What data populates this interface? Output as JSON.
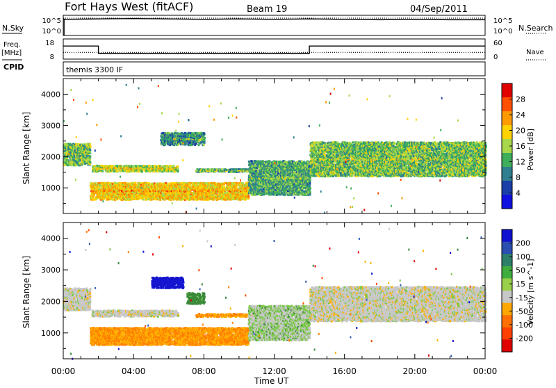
{
  "header": {
    "station": "Fort Hays West (fitACF)",
    "beam": "Beam 19",
    "date": "04/Sep/2011"
  },
  "side_labels": {
    "nsky": "N.Sky",
    "nsearch": "N.Search",
    "freq": "Freq.",
    "freq_unit": "[MHz]",
    "nave": "Nave",
    "cpid": "CPID",
    "cpid_value": "themis 3300 IF"
  },
  "small_ticks": {
    "nsky_top": "10^5",
    "nsky_bottom": "10^0",
    "nsearch_top": "10^5",
    "nsearch_bottom": "10^0",
    "freq_top": "18",
    "freq_bottom": "8",
    "nave_top": "60",
    "nave_bottom": "0"
  },
  "xaxis": {
    "title": "Time UT",
    "ticks": [
      "00:00",
      "04:00",
      "08:00",
      "12:00",
      "16:00",
      "20:00",
      "00:00"
    ]
  },
  "chart_data": [
    {
      "type": "line",
      "panel": "noise",
      "series": [
        {
          "name": "N.Sky",
          "style": "solid",
          "x_hours": [
            0,
            2,
            4,
            6,
            8,
            10,
            12,
            14,
            16,
            18,
            20,
            22,
            24
          ],
          "log10_value": [
            4.0,
            4.1,
            4.2,
            4.1,
            4.0,
            4.1,
            4.0,
            4.1,
            4.0,
            3.9,
            4.0,
            3.9,
            3.9
          ]
        },
        {
          "name": "N.Search",
          "style": "dotted",
          "x_hours": [
            0,
            6,
            12,
            18,
            24
          ],
          "log10_value": [
            4.3,
            4.3,
            4.3,
            4.3,
            4.3
          ]
        }
      ],
      "ylim_log10": [
        0,
        5
      ]
    },
    {
      "type": "line",
      "panel": "frequency",
      "series": [
        {
          "name": "Freq.",
          "style": "solid",
          "x_hours": [
            0,
            2,
            2,
            14,
            14,
            24
          ],
          "values": [
            14.5,
            14.5,
            10.8,
            10.8,
            14.5,
            14.5
          ]
        },
        {
          "name": "Nave",
          "style": "dotted",
          "x_hours": [
            0,
            24
          ],
          "values": [
            20,
            20
          ]
        }
      ],
      "ylim_freq": [
        8,
        18
      ],
      "ylim_nave": [
        0,
        60
      ]
    },
    {
      "type": "heatmap",
      "panel": "power",
      "ylabel": "Slant Range [km]",
      "colorbar_label": "Power [dB]",
      "colorbar_ticks": [
        "28",
        "24",
        "20",
        "16",
        "12",
        "8",
        "4"
      ],
      "colorbar_colors": [
        "#e00000",
        "#ff5000",
        "#ff9a00",
        "#ffd200",
        "#a8d84a",
        "#3fae5b",
        "#2e7f8f",
        "#1a3fa8",
        "#1010e0"
      ],
      "ylim": [
        180,
        4500
      ],
      "yticks": [
        "1000",
        "2000",
        "3000",
        "4000"
      ],
      "xlim_hours": [
        0,
        24
      ],
      "regions": [
        {
          "t": [
            0,
            1.5
          ],
          "r": [
            1750,
            2450
          ],
          "p": 12
        },
        {
          "t": [
            1.6,
            6.5
          ],
          "r": [
            1550,
            1750
          ],
          "p": 14
        },
        {
          "t": [
            5.5,
            8.0
          ],
          "r": [
            2400,
            2800
          ],
          "p": 8
        },
        {
          "t": [
            7.5,
            10.8
          ],
          "r": [
            1540,
            1640
          ],
          "p": 10
        },
        {
          "t": [
            1.5,
            10.5
          ],
          "r": [
            650,
            1200
          ],
          "p": 18
        },
        {
          "t": [
            10.5,
            14.0
          ],
          "r": [
            800,
            1900
          ],
          "p": 10
        },
        {
          "t": [
            14.0,
            24.0
          ],
          "r": [
            1400,
            2500
          ],
          "p": 12
        }
      ]
    },
    {
      "type": "heatmap",
      "panel": "velocity",
      "ylabel": "Slant Range [km]",
      "colorbar_label": "Velocity [m s^-1]",
      "colorbar_ticks": [
        "200",
        "100",
        "50",
        "15",
        "-15",
        "-50",
        "-100",
        "-200"
      ],
      "colorbar_colors": [
        "#1010d0",
        "#2a4fb0",
        "#2e7f6a",
        "#3fae3f",
        "#9ad04a",
        "#c8c8c8",
        "#ffa800",
        "#ff7000",
        "#ff4000",
        "#e00000"
      ],
      "ylim": [
        180,
        4500
      ],
      "yticks": [
        "1000",
        "2000",
        "3000",
        "4000"
      ],
      "xlim_hours": [
        0,
        24
      ],
      "regions": [
        {
          "t": [
            0,
            1.5
          ],
          "r": [
            1750,
            2450
          ],
          "v": 0
        },
        {
          "t": [
            1.6,
            6.5
          ],
          "r": [
            1550,
            1750
          ],
          "v": 0
        },
        {
          "t": [
            5.0,
            6.8
          ],
          "r": [
            2450,
            2800
          ],
          "v": 200
        },
        {
          "t": [
            7.0,
            8.0
          ],
          "r": [
            1950,
            2300
          ],
          "v": 50
        },
        {
          "t": [
            7.5,
            10.8
          ],
          "r": [
            1540,
            1640
          ],
          "v": -50
        },
        {
          "t": [
            1.5,
            10.5
          ],
          "r": [
            650,
            1200
          ],
          "v": -50
        },
        {
          "t": [
            10.5,
            14.0
          ],
          "r": [
            800,
            1900
          ],
          "v": 15
        },
        {
          "t": [
            14.0,
            24.0
          ],
          "r": [
            1400,
            2500
          ],
          "v": 0
        }
      ]
    }
  ]
}
